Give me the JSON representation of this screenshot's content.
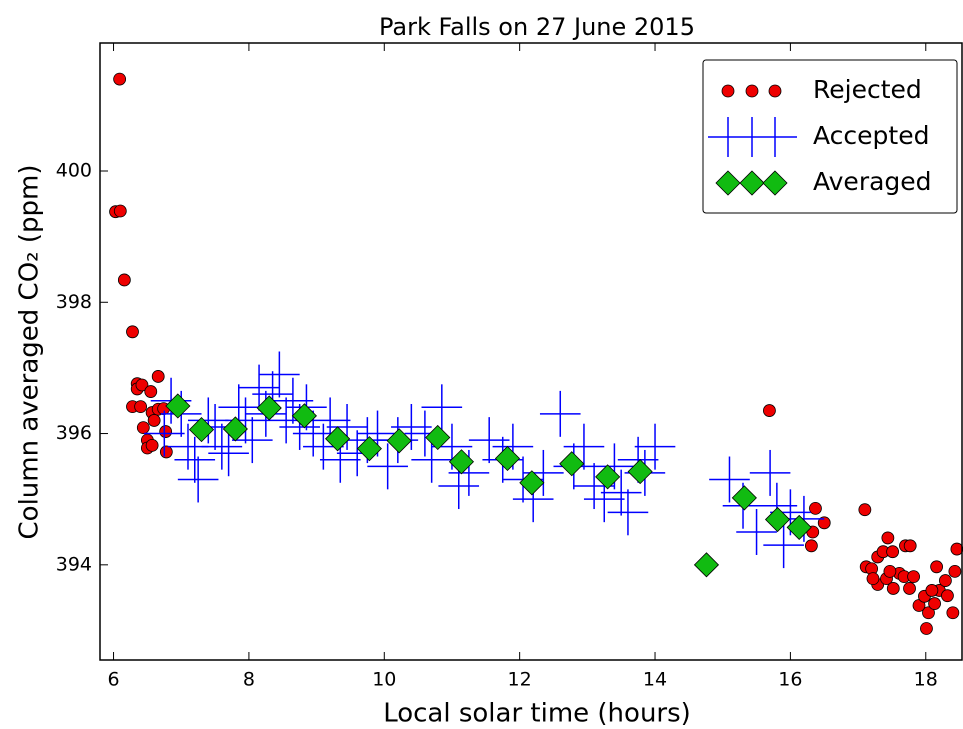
{
  "chart_data": {
    "type": "scatter",
    "title": "Park Falls on 27 June 2015",
    "x_label": "Local solar time (hours)",
    "y_label": "Column averaged CO₂ (ppm)",
    "xlim": [
      5.8,
      18.55
    ],
    "ylim": [
      392.55,
      401.95
    ],
    "xticks": [
      6,
      8,
      10,
      12,
      14,
      16,
      18
    ],
    "yticks": [
      394,
      396,
      398,
      400
    ],
    "legend": "upper right",
    "series": [
      {
        "name": "Rejected",
        "color": "#ee0000",
        "marker": "o",
        "x": [
          6.09,
          6.03,
          6.1,
          6.16,
          6.28,
          6.35,
          6.35,
          6.42,
          6.28,
          6.4,
          6.55,
          6.66,
          6.57,
          6.66,
          6.6,
          6.44,
          6.5,
          6.5,
          6.57,
          6.74,
          6.78,
          6.77,
          15.69,
          16.37,
          16.5,
          16.33,
          16.31,
          17.12,
          17.2,
          17.29,
          17.37,
          17.44,
          17.51,
          17.7,
          17.77,
          17.29,
          17.42,
          17.52,
          17.61,
          17.68,
          17.82,
          17.76,
          17.9,
          17.98,
          18.04,
          18.01,
          18.13,
          18.2,
          18.29,
          18.32,
          18.4,
          18.46,
          18.43,
          18.16,
          18.09,
          17.47,
          17.22,
          17.1
        ],
        "values": [
          401.4,
          399.38,
          399.39,
          398.34,
          397.55,
          396.76,
          396.68,
          396.74,
          396.41,
          396.41,
          396.64,
          396.87,
          396.32,
          396.37,
          396.2,
          396.09,
          395.9,
          395.78,
          395.82,
          396.38,
          395.72,
          396.03,
          396.35,
          394.86,
          394.64,
          394.5,
          394.29,
          393.97,
          393.94,
          394.12,
          394.2,
          394.41,
          394.2,
          394.29,
          394.29,
          393.7,
          393.79,
          393.64,
          393.87,
          393.82,
          393.82,
          393.64,
          393.38,
          393.52,
          393.27,
          393.03,
          393.41,
          393.61,
          393.76,
          393.53,
          393.27,
          394.24,
          393.9,
          393.97,
          393.61,
          393.9,
          393.79,
          394.84
        ]
      },
      {
        "name": "Accepted",
        "color": "#0000ff",
        "marker": "+",
        "xerr": 0.3,
        "yerr": 0.35,
        "x": [
          6.75,
          6.85,
          7.0,
          7.1,
          7.2,
          7.25,
          7.4,
          7.5,
          7.6,
          7.7,
          7.85,
          7.95,
          8.05,
          8.15,
          8.25,
          8.35,
          8.45,
          8.55,
          8.65,
          8.75,
          8.85,
          8.95,
          9.1,
          9.2,
          9.35,
          9.45,
          9.6,
          9.75,
          9.9,
          10.05,
          10.2,
          10.4,
          10.6,
          10.7,
          10.85,
          11.0,
          11.1,
          11.25,
          11.55,
          11.75,
          11.9,
          12.05,
          12.2,
          12.35,
          12.6,
          12.8,
          12.95,
          13.1,
          13.25,
          13.4,
          13.5,
          13.6,
          13.75,
          13.85,
          14.0,
          15.1,
          15.3,
          15.5,
          15.7,
          15.8,
          15.9,
          16.0,
          16.2
        ],
        "values": [
          396.0,
          396.5,
          396.3,
          395.8,
          395.6,
          395.3,
          396.2,
          396.1,
          395.8,
          395.7,
          396.4,
          396.2,
          395.9,
          396.7,
          396.3,
          396.6,
          396.9,
          396.2,
          396.5,
          396.1,
          396.4,
          396.0,
          395.8,
          396.2,
          395.6,
          396.1,
          395.7,
          395.9,
          396.0,
          395.5,
          395.9,
          396.1,
          396.0,
          395.6,
          396.4,
          395.8,
          395.2,
          395.4,
          395.9,
          395.6,
          395.8,
          395.3,
          395.0,
          395.4,
          396.3,
          395.5,
          395.8,
          395.2,
          395.0,
          395.5,
          395.1,
          394.8,
          395.6,
          395.4,
          395.8,
          395.3,
          394.9,
          394.5,
          395.4,
          394.9,
          394.3,
          394.8,
          394.7
        ]
      },
      {
        "name": "Averaged",
        "color": "#11bb11",
        "marker": "D",
        "x": [
          6.95,
          7.3,
          7.8,
          8.3,
          8.82,
          9.31,
          9.78,
          10.22,
          10.79,
          11.14,
          11.82,
          12.18,
          12.77,
          13.3,
          13.78,
          14.76,
          15.32,
          15.81,
          16.13
        ],
        "values": [
          396.42,
          396.06,
          396.07,
          396.39,
          396.27,
          395.92,
          395.77,
          395.89,
          395.94,
          395.57,
          395.62,
          395.25,
          395.54,
          395.34,
          395.42,
          394.0,
          395.02,
          394.69,
          394.57
        ]
      }
    ]
  }
}
